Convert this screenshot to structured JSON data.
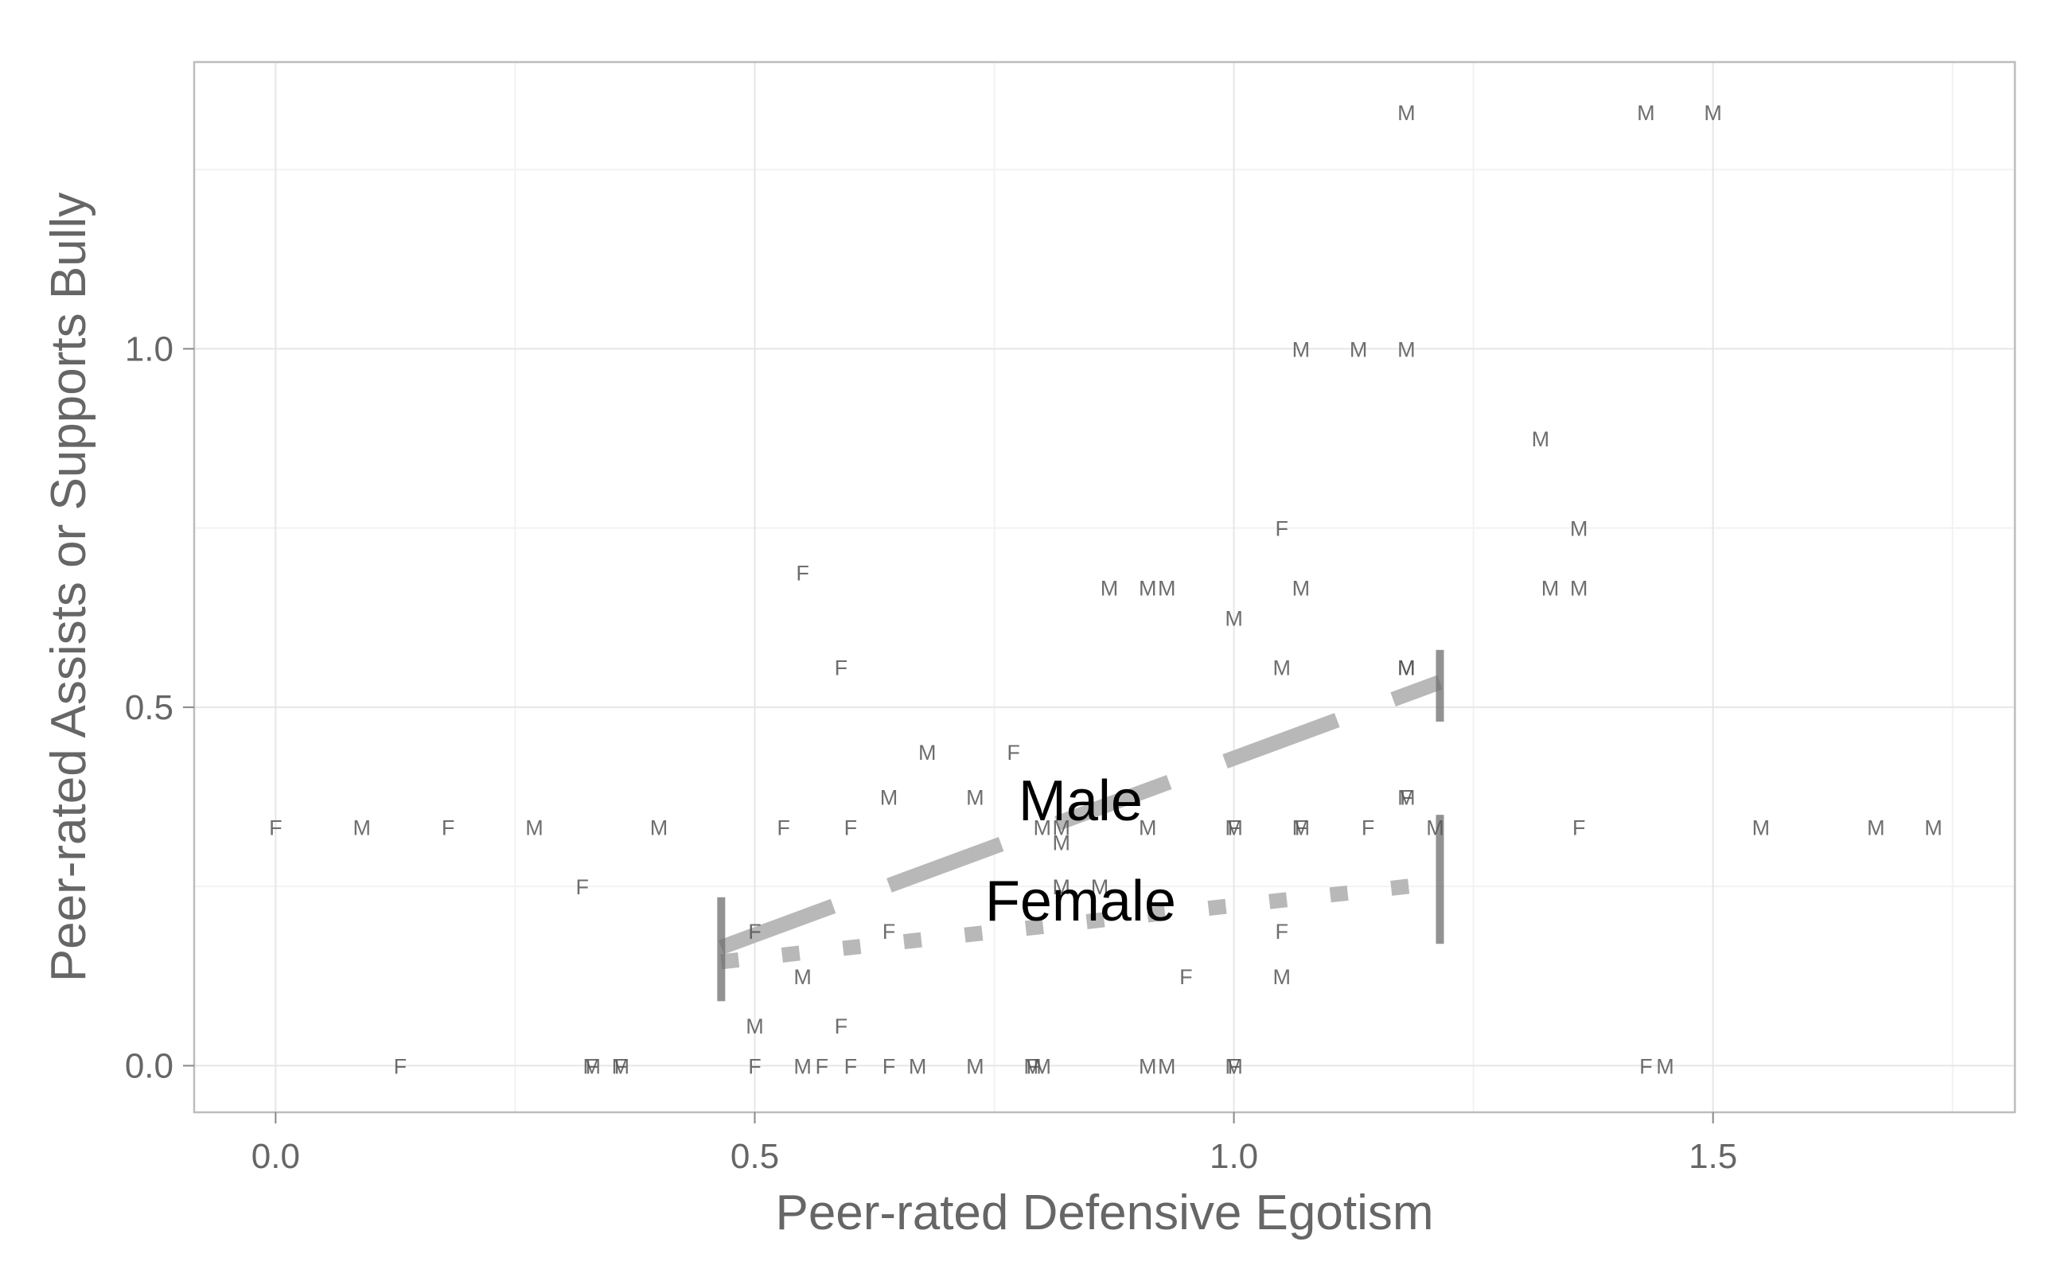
{
  "chart_data": {
    "type": "scatter",
    "title": "",
    "xlabel": "Peer-rated Defensive Egotism",
    "ylabel": "Peer-rated Assists or Supports Bully",
    "xlim": [
      -0.085,
      1.815
    ],
    "ylim": [
      -0.065,
      1.4
    ],
    "x_ticks": [
      0.0,
      0.5,
      1.0,
      1.5
    ],
    "x_tick_labels": [
      "0.0",
      "0.5",
      "1.0",
      "1.5"
    ],
    "y_ticks": [
      0.0,
      0.5,
      1.0
    ],
    "y_tick_labels": [
      "0.0",
      "0.5",
      "1.0"
    ],
    "grid": true,
    "legend": "none",
    "colors": {
      "panel_border": "#bdbdbd",
      "grid_major": "#e6e6e6",
      "grid_minor": "#f2f2f2",
      "fit_line": "#b8b8b8",
      "range_mark": "#6e6e6e"
    },
    "points": [
      {
        "x": 0.0,
        "y": 0.333,
        "label": "F"
      },
      {
        "x": 0.09,
        "y": 0.333,
        "label": "M"
      },
      {
        "x": 0.18,
        "y": 0.333,
        "label": "F"
      },
      {
        "x": 0.27,
        "y": 0.333,
        "label": "M"
      },
      {
        "x": 0.4,
        "y": 0.333,
        "label": "M"
      },
      {
        "x": 0.53,
        "y": 0.333,
        "label": "F"
      },
      {
        "x": 0.6,
        "y": 0.333,
        "label": "F"
      },
      {
        "x": 0.32,
        "y": 0.25,
        "label": "F"
      },
      {
        "x": 0.13,
        "y": 0.0,
        "label": "F"
      },
      {
        "x": 0.33,
        "y": 0.0,
        "label": "M"
      },
      {
        "x": 0.33,
        "y": 0.0,
        "label": "F"
      },
      {
        "x": 0.36,
        "y": 0.0,
        "label": "M"
      },
      {
        "x": 0.36,
        "y": 0.0,
        "label": "F"
      },
      {
        "x": 0.5,
        "y": 0.0,
        "label": "F"
      },
      {
        "x": 0.55,
        "y": 0.0,
        "label": "M"
      },
      {
        "x": 0.57,
        "y": 0.0,
        "label": "F"
      },
      {
        "x": 0.6,
        "y": 0.0,
        "label": "F"
      },
      {
        "x": 0.64,
        "y": 0.0,
        "label": "F"
      },
      {
        "x": 0.67,
        "y": 0.0,
        "label": "M"
      },
      {
        "x": 0.73,
        "y": 0.0,
        "label": "M"
      },
      {
        "x": 0.79,
        "y": 0.0,
        "label": "M"
      },
      {
        "x": 0.79,
        "y": 0.0,
        "label": "F"
      },
      {
        "x": 0.8,
        "y": 0.0,
        "label": "M"
      },
      {
        "x": 0.91,
        "y": 0.0,
        "label": "M"
      },
      {
        "x": 0.93,
        "y": 0.0,
        "label": "M"
      },
      {
        "x": 1.0,
        "y": 0.0,
        "label": "M"
      },
      {
        "x": 1.0,
        "y": 0.0,
        "label": "F"
      },
      {
        "x": 1.43,
        "y": 0.0,
        "label": "F"
      },
      {
        "x": 1.45,
        "y": 0.0,
        "label": "M"
      },
      {
        "x": 0.5,
        "y": 0.056,
        "label": "M"
      },
      {
        "x": 0.59,
        "y": 0.056,
        "label": "F"
      },
      {
        "x": 0.55,
        "y": 0.125,
        "label": "M"
      },
      {
        "x": 0.95,
        "y": 0.125,
        "label": "F"
      },
      {
        "x": 1.05,
        "y": 0.125,
        "label": "M"
      },
      {
        "x": 0.5,
        "y": 0.188,
        "label": "F"
      },
      {
        "x": 0.64,
        "y": 0.188,
        "label": "F"
      },
      {
        "x": 1.05,
        "y": 0.188,
        "label": "F"
      },
      {
        "x": 0.82,
        "y": 0.25,
        "label": "M"
      },
      {
        "x": 0.86,
        "y": 0.25,
        "label": "M"
      },
      {
        "x": 0.82,
        "y": 0.312,
        "label": "M"
      },
      {
        "x": 0.8,
        "y": 0.333,
        "label": "M"
      },
      {
        "x": 0.82,
        "y": 0.333,
        "label": "M"
      },
      {
        "x": 0.91,
        "y": 0.333,
        "label": "M"
      },
      {
        "x": 1.0,
        "y": 0.333,
        "label": "M"
      },
      {
        "x": 1.0,
        "y": 0.333,
        "label": "F"
      },
      {
        "x": 1.07,
        "y": 0.333,
        "label": "M"
      },
      {
        "x": 1.07,
        "y": 0.333,
        "label": "F"
      },
      {
        "x": 1.14,
        "y": 0.333,
        "label": "F"
      },
      {
        "x": 1.21,
        "y": 0.333,
        "label": "M"
      },
      {
        "x": 1.36,
        "y": 0.333,
        "label": "F"
      },
      {
        "x": 1.55,
        "y": 0.333,
        "label": "M"
      },
      {
        "x": 1.67,
        "y": 0.333,
        "label": "M"
      },
      {
        "x": 1.73,
        "y": 0.333,
        "label": "M"
      },
      {
        "x": 0.64,
        "y": 0.375,
        "label": "M"
      },
      {
        "x": 0.73,
        "y": 0.375,
        "label": "M"
      },
      {
        "x": 1.18,
        "y": 0.375,
        "label": "M"
      },
      {
        "x": 1.18,
        "y": 0.375,
        "label": "F"
      },
      {
        "x": 0.68,
        "y": 0.438,
        "label": "M"
      },
      {
        "x": 0.77,
        "y": 0.438,
        "label": "F"
      },
      {
        "x": 0.59,
        "y": 0.556,
        "label": "F"
      },
      {
        "x": 1.05,
        "y": 0.556,
        "label": "M"
      },
      {
        "x": 1.18,
        "y": 0.556,
        "label": "M"
      },
      {
        "x": 1.18,
        "y": 0.556,
        "label": "M"
      },
      {
        "x": 1.0,
        "y": 0.625,
        "label": "M"
      },
      {
        "x": 0.55,
        "y": 0.688,
        "label": "F"
      },
      {
        "x": 0.87,
        "y": 0.667,
        "label": "M"
      },
      {
        "x": 0.91,
        "y": 0.667,
        "label": "M"
      },
      {
        "x": 0.93,
        "y": 0.667,
        "label": "M"
      },
      {
        "x": 1.07,
        "y": 0.667,
        "label": "M"
      },
      {
        "x": 1.33,
        "y": 0.667,
        "label": "M"
      },
      {
        "x": 1.36,
        "y": 0.667,
        "label": "M"
      },
      {
        "x": 1.05,
        "y": 0.75,
        "label": "F"
      },
      {
        "x": 1.36,
        "y": 0.75,
        "label": "M"
      },
      {
        "x": 1.32,
        "y": 0.875,
        "label": "M"
      },
      {
        "x": 1.07,
        "y": 1.0,
        "label": "M"
      },
      {
        "x": 1.13,
        "y": 1.0,
        "label": "M"
      },
      {
        "x": 1.18,
        "y": 1.0,
        "label": "M"
      },
      {
        "x": 1.18,
        "y": 1.33,
        "label": "M"
      },
      {
        "x": 1.43,
        "y": 1.33,
        "label": "M"
      },
      {
        "x": 1.5,
        "y": 1.33,
        "label": "M"
      }
    ],
    "series": [
      {
        "name": "Male",
        "style": "dashed",
        "fit": {
          "x": [
            0.465,
            1.215
          ],
          "y": [
            0.165,
            0.535
          ]
        },
        "range_x": [
          0.465,
          1.215
        ]
      },
      {
        "name": "Female",
        "style": "dotted",
        "fit": {
          "x": [
            0.465,
            1.215
          ],
          "y": [
            0.145,
            0.255
          ]
        },
        "range_x": [
          0.465,
          1.215
        ]
      }
    ],
    "annotations": [
      {
        "text": "Male",
        "x": 0.84,
        "y": 0.37
      },
      {
        "text": "Female",
        "x": 0.84,
        "y": 0.23
      }
    ],
    "rug_marks": [
      {
        "x": 0.465,
        "y0": 0.09,
        "y1": 0.235
      },
      {
        "x": 1.215,
        "y0": 0.48,
        "y1": 0.58
      },
      {
        "x": 1.215,
        "y0": 0.17,
        "y1": 0.35
      }
    ]
  }
}
